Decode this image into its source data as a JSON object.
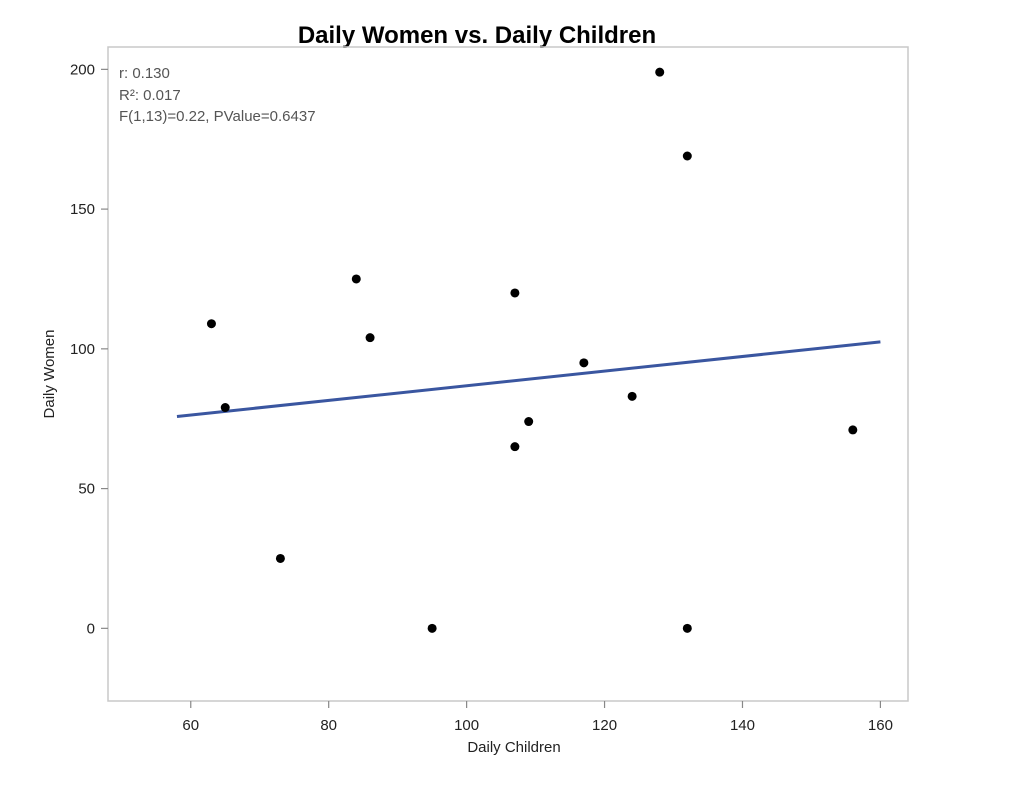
{
  "chart_data": {
    "type": "scatter",
    "title": "Daily Women vs. Daily Children",
    "xlabel": "Daily Children",
    "ylabel": "Daily Women",
    "xlim": [
      48,
      164
    ],
    "ylim": [
      -26,
      208
    ],
    "x_ticks": [
      60,
      80,
      100,
      120,
      140,
      160
    ],
    "y_ticks": [
      0,
      50,
      100,
      150,
      200
    ],
    "grid": false,
    "points": [
      {
        "x": 128,
        "y": 199
      },
      {
        "x": 132,
        "y": 169
      },
      {
        "x": 84,
        "y": 125
      },
      {
        "x": 107,
        "y": 120
      },
      {
        "x": 63,
        "y": 109
      },
      {
        "x": 86,
        "y": 104
      },
      {
        "x": 117,
        "y": 95
      },
      {
        "x": 124,
        "y": 83
      },
      {
        "x": 65,
        "y": 79
      },
      {
        "x": 109,
        "y": 74
      },
      {
        "x": 156,
        "y": 71
      },
      {
        "x": 107,
        "y": 65
      },
      {
        "x": 73,
        "y": 25
      },
      {
        "x": 95,
        "y": 0
      },
      {
        "x": 132,
        "y": 0
      }
    ],
    "fit_line": {
      "x": [
        58,
        160
      ],
      "y": [
        75.8,
        102.5
      ]
    },
    "stats": [
      "r: 0.130",
      "R²: 0.017",
      "F(1,13)=0.22, PValue=0.6437"
    ],
    "colors": {
      "points": "#000000",
      "fit_line": "#3a56a0",
      "frame": "#c8c8c8",
      "axis": "#888888"
    }
  }
}
